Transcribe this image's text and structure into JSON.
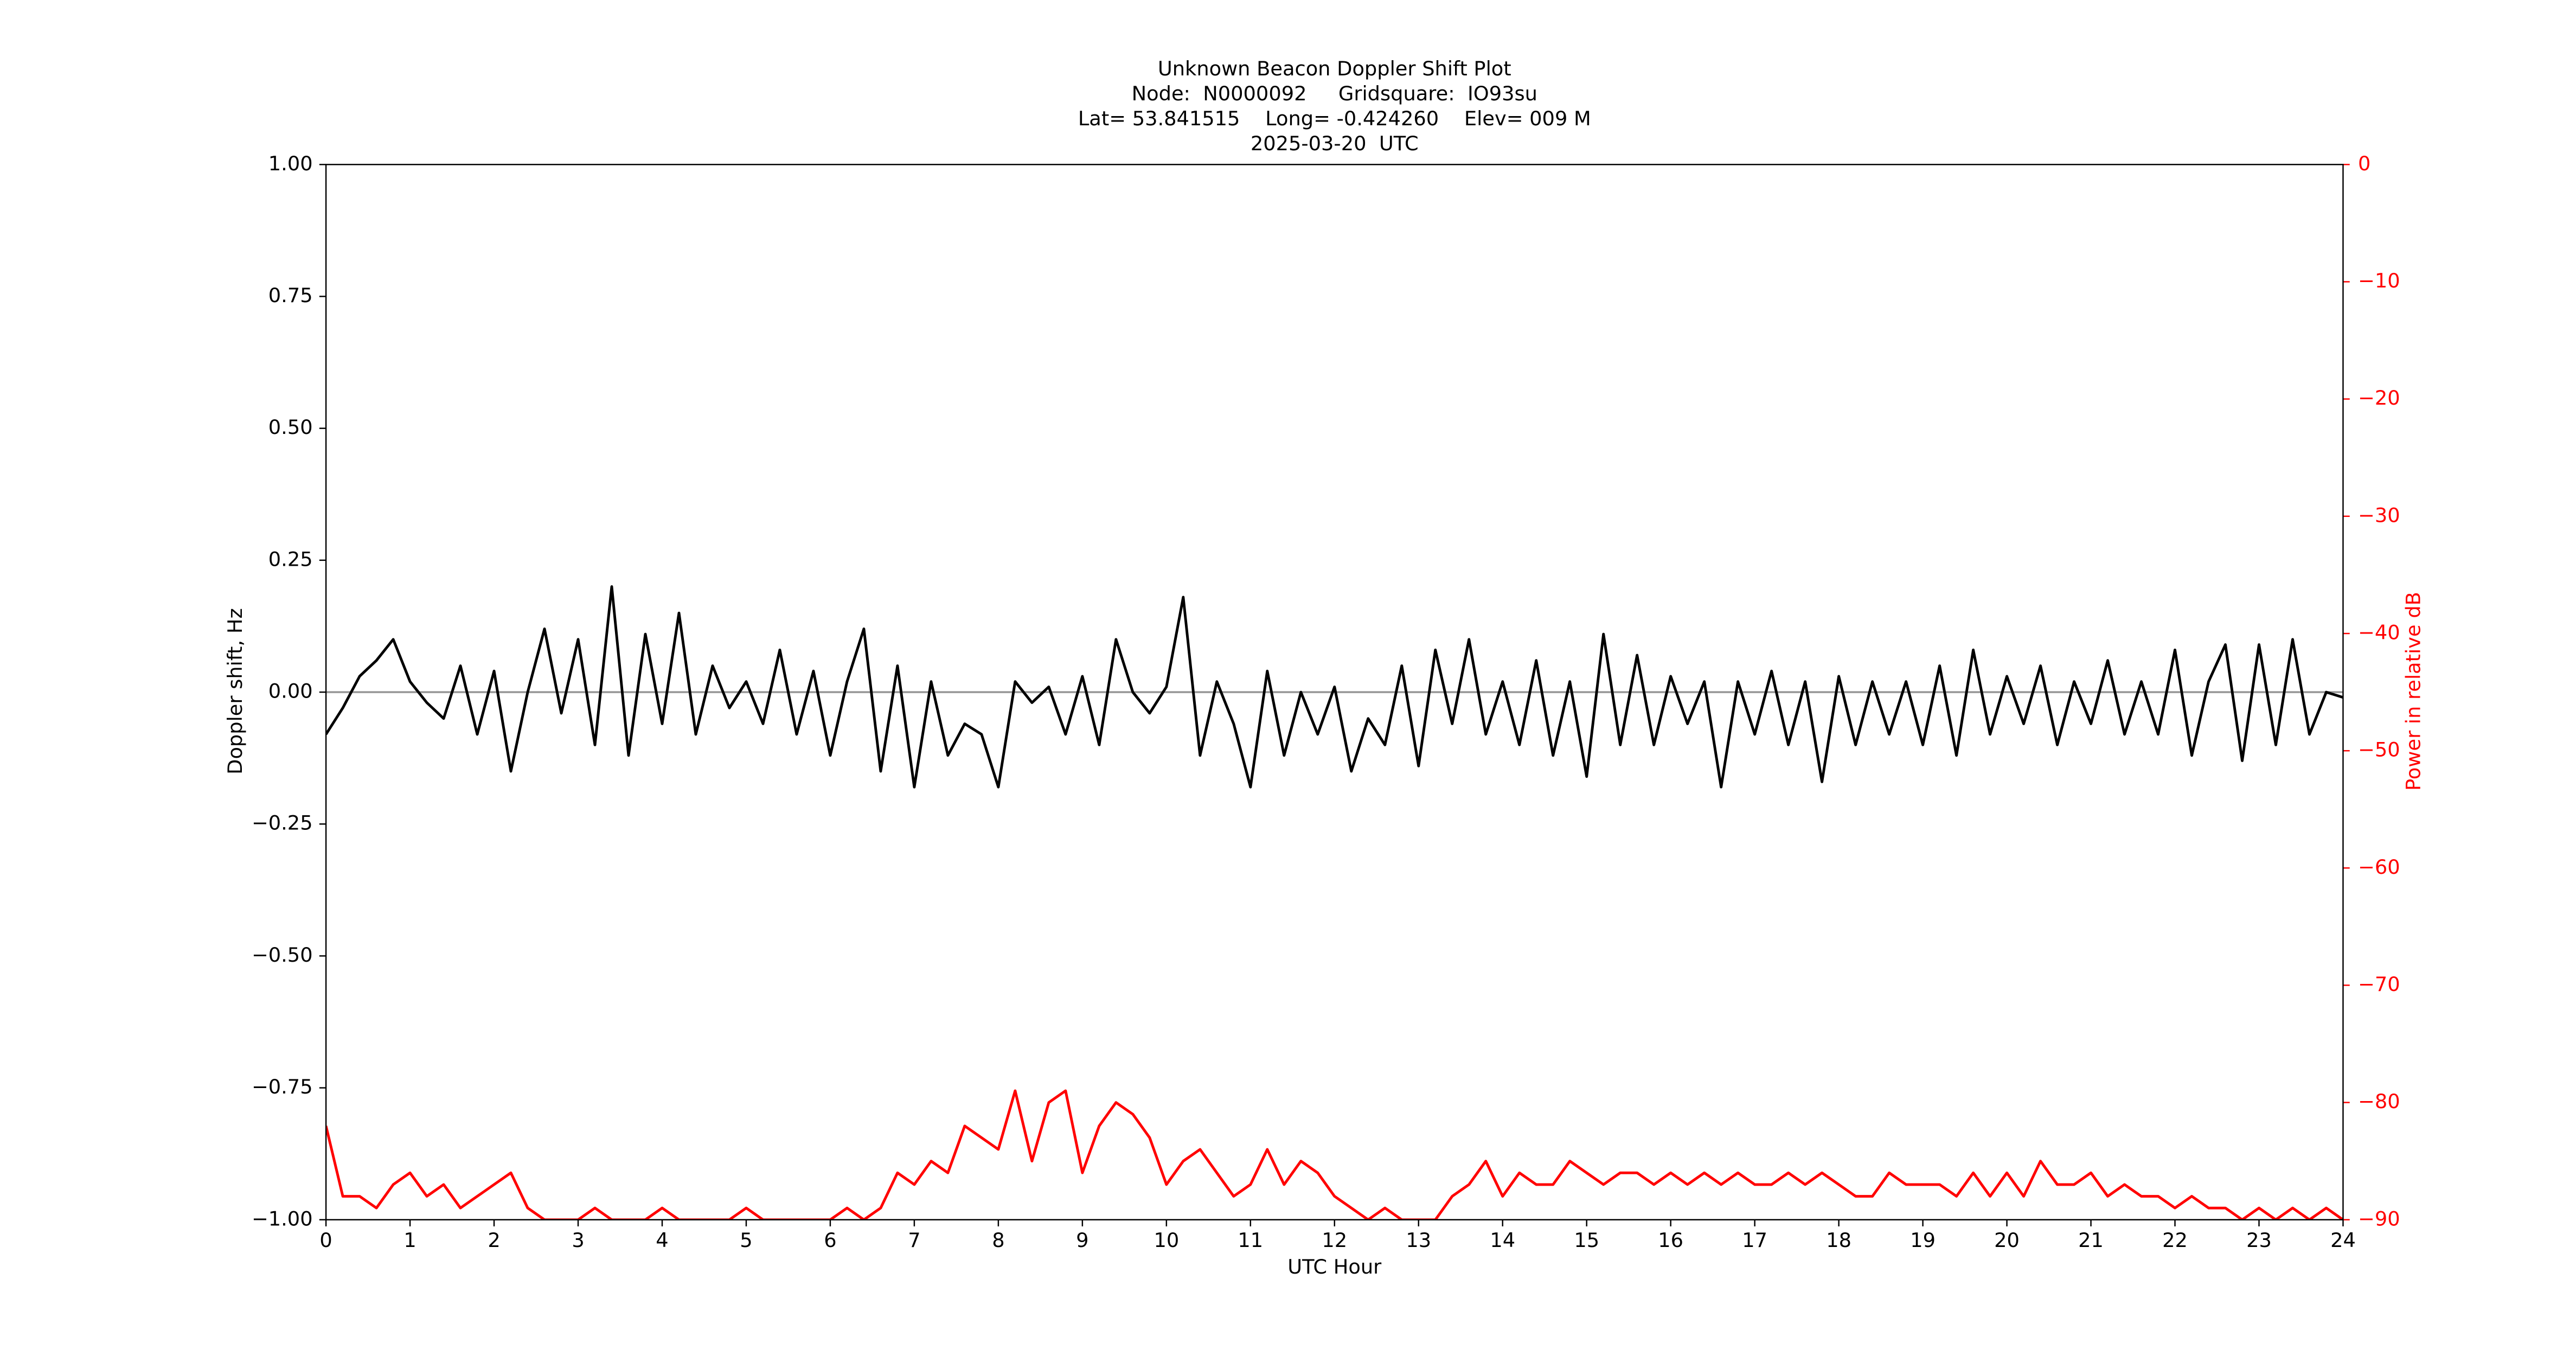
{
  "chart_data": {
    "type": "line",
    "title": [
      "Unknown Beacon Doppler Shift Plot",
      "Node:  N0000092     Gridsquare:  IO93su",
      "Lat= 53.841515    Long= -0.424260    Elev= 009 M",
      "2025-03-20  UTC"
    ],
    "xlabel": "UTC Hour",
    "ylabel": "Doppler shift, Hz",
    "y2label": "Power in relative dB",
    "xlim": [
      0,
      24
    ],
    "xticks": [
      0,
      1,
      2,
      3,
      4,
      5,
      6,
      7,
      8,
      9,
      10,
      11,
      12,
      13,
      14,
      15,
      16,
      17,
      18,
      19,
      20,
      21,
      22,
      23,
      24
    ],
    "ylim": [
      -1,
      1
    ],
    "yticks": [
      {
        "value": -1,
        "label": "−1.00"
      },
      {
        "value": -0.75,
        "label": "−0.75"
      },
      {
        "value": -0.5,
        "label": "−0.50"
      },
      {
        "value": -0.25,
        "label": "−0.25"
      },
      {
        "value": 0,
        "label": "0.00"
      },
      {
        "value": 0.25,
        "label": "0.25"
      },
      {
        "value": 0.5,
        "label": "0.50"
      },
      {
        "value": 0.75,
        "label": "0.75"
      },
      {
        "value": 1,
        "label": "1.00"
      }
    ],
    "y2lim": [
      -90,
      0
    ],
    "y2ticks": [
      {
        "value": -90,
        "label": "−90"
      },
      {
        "value": -80,
        "label": "−80"
      },
      {
        "value": -70,
        "label": "−70"
      },
      {
        "value": -60,
        "label": "−60"
      },
      {
        "value": -50,
        "label": "−50"
      },
      {
        "value": -40,
        "label": "−40"
      },
      {
        "value": -30,
        "label": "−30"
      },
      {
        "value": -20,
        "label": "−20"
      },
      {
        "value": -10,
        "label": "−10"
      },
      0
    ],
    "y2color": "#ff0000",
    "hline": {
      "value": 0,
      "color": "#999999"
    },
    "x": [
      0,
      0.2,
      0.4,
      0.6,
      0.8,
      1,
      1.2,
      1.4,
      1.6,
      1.8,
      2,
      2.2,
      2.4,
      2.6,
      2.8,
      3,
      3.2,
      3.4,
      3.6,
      3.8,
      4,
      4.2,
      4.4,
      4.6,
      4.8,
      5,
      5.2,
      5.4,
      5.6,
      5.8,
      6,
      6.2,
      6.4,
      6.6,
      6.8,
      7,
      7.2,
      7.4,
      7.6,
      7.8,
      8,
      8.2,
      8.4,
      8.6,
      8.8,
      9,
      9.2,
      9.4,
      9.6,
      9.8,
      10,
      10.2,
      10.4,
      10.6,
      10.8,
      11,
      11.2,
      11.4,
      11.6,
      11.8,
      12,
      12.2,
      12.4,
      12.6,
      12.8,
      13,
      13.2,
      13.4,
      13.6,
      13.8,
      14,
      14.2,
      14.4,
      14.6,
      14.8,
      15,
      15.2,
      15.4,
      15.6,
      15.8,
      16,
      16.2,
      16.4,
      16.6,
      16.8,
      17,
      17.2,
      17.4,
      17.6,
      17.8,
      18,
      18.2,
      18.4,
      18.6,
      18.8,
      19,
      19.2,
      19.4,
      19.6,
      19.8,
      20,
      20.2,
      20.4,
      20.6,
      20.8,
      21,
      21.2,
      21.4,
      21.6,
      21.8,
      22,
      22.2,
      22.4,
      22.6,
      22.8,
      23,
      23.2,
      23.4,
      23.6,
      23.8,
      24
    ],
    "series": [
      {
        "color": "#000000",
        "values": [
          -0.08,
          -0.03,
          0.03,
          0.06,
          0.1,
          0.02,
          -0.02,
          -0.05,
          0.05,
          -0.08,
          0.04,
          -0.15,
          0.0,
          0.12,
          -0.04,
          0.1,
          -0.1,
          0.2,
          -0.12,
          0.11,
          -0.06,
          0.15,
          -0.08,
          0.05,
          -0.03,
          0.02,
          -0.06,
          0.08,
          -0.08,
          0.04,
          -0.12,
          0.02,
          0.12,
          -0.15,
          0.05,
          -0.18,
          0.02,
          -0.12,
          -0.06,
          -0.08,
          -0.18,
          0.02,
          -0.02,
          0.01,
          -0.08,
          0.03,
          -0.1,
          0.1,
          0.0,
          -0.04,
          0.01,
          0.18,
          -0.12,
          0.02,
          -0.06,
          -0.18,
          0.04,
          -0.12,
          0.0,
          -0.08,
          0.01,
          -0.15,
          -0.05,
          -0.1,
          0.05,
          -0.14,
          0.08,
          -0.06,
          0.1,
          -0.08,
          0.02,
          -0.1,
          0.06,
          -0.12,
          0.02,
          -0.16,
          0.11,
          -0.1,
          0.07,
          -0.1,
          0.03,
          -0.06,
          0.02,
          -0.18,
          0.02,
          -0.08,
          0.04,
          -0.1,
          0.02,
          -0.17,
          0.03,
          -0.1,
          0.02,
          -0.08,
          0.02,
          -0.1,
          0.05,
          -0.12,
          0.08,
          -0.08,
          0.03,
          -0.06,
          0.05,
          -0.1,
          0.02,
          -0.06,
          0.06,
          -0.08,
          0.02,
          -0.08,
          0.08,
          -0.12,
          0.02,
          0.09,
          -0.13,
          0.09,
          -0.1,
          0.1,
          -0.08,
          0.0,
          -0.01
        ]
      },
      {
        "color": "#ff0000",
        "axis": "y2",
        "values": [
          -82,
          -88,
          -88,
          -89,
          -87,
          -86,
          -88,
          -87,
          -89,
          -88,
          -87,
          -86,
          -89,
          -90,
          -90,
          -90,
          -89,
          -90,
          -90,
          -90,
          -89,
          -90,
          -90,
          -90,
          -90,
          -89,
          -90,
          -90,
          -90,
          -90,
          -90,
          -89,
          -90,
          -89,
          -86,
          -87,
          -85,
          -86,
          -82,
          -83,
          -84,
          -79,
          -85,
          -80,
          -79,
          -86,
          -82,
          -80,
          -81,
          -83,
          -87,
          -85,
          -84,
          -86,
          -88,
          -87,
          -84,
          -87,
          -85,
          -86,
          -88,
          -89,
          -90,
          -89,
          -90,
          -90,
          -90,
          -88,
          -87,
          -85,
          -88,
          -86,
          -87,
          -87,
          -85,
          -86,
          -87,
          -86,
          -86,
          -87,
          -86,
          -87,
          -86,
          -87,
          -86,
          -87,
          -87,
          -86,
          -87,
          -86,
          -87,
          -88,
          -88,
          -86,
          -87,
          -87,
          -87,
          -88,
          -86,
          -88,
          -86,
          -88,
          -85,
          -87,
          -87,
          -86,
          -88,
          -87,
          -88,
          -88,
          -89,
          -88,
          -89,
          -89,
          -90,
          -89,
          -90,
          -89,
          -90,
          -89,
          -90
        ]
      }
    ]
  }
}
